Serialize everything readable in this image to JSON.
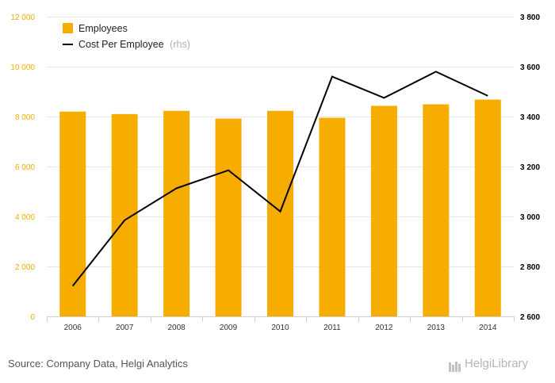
{
  "chart_data": {
    "type": "bar-line",
    "categories": [
      "2006",
      "2007",
      "2008",
      "2009",
      "2010",
      "2011",
      "2012",
      "2013",
      "2014"
    ],
    "series": [
      {
        "name": "Employees",
        "type": "bar",
        "axis": "left",
        "color": "#f7ac00",
        "values": [
          8200,
          8100,
          8230,
          7920,
          8230,
          7950,
          8430,
          8490,
          8680
        ]
      },
      {
        "name": "Cost Per Employee",
        "name_suffix": "(rhs)",
        "type": "line",
        "axis": "right",
        "color": "#000000",
        "values": [
          2722,
          2985,
          3113,
          3185,
          3020,
          3560,
          3475,
          3580,
          3483
        ]
      }
    ],
    "y_left": {
      "min": 0,
      "max": 12000,
      "ticks": [
        0,
        2000,
        4000,
        6000,
        8000,
        10000,
        12000
      ],
      "tick_labels": [
        "0",
        "2 000",
        "4 000",
        "6 000",
        "8 000",
        "10 000",
        "12 000"
      ],
      "color": "#f7ac00"
    },
    "y_right": {
      "min": 2600,
      "max": 3800,
      "ticks": [
        2600,
        2800,
        3000,
        3200,
        3400,
        3600,
        3800
      ],
      "tick_labels": [
        "2 600",
        "2 800",
        "3 000",
        "3 200",
        "3 400",
        "3 600",
        "3 800"
      ],
      "color": "#000000"
    },
    "grid": true,
    "legend_position": "top-left"
  },
  "footer": {
    "source": "Source: Company Data, Helgi Analytics",
    "logo_text": "HelgiLibrary"
  }
}
